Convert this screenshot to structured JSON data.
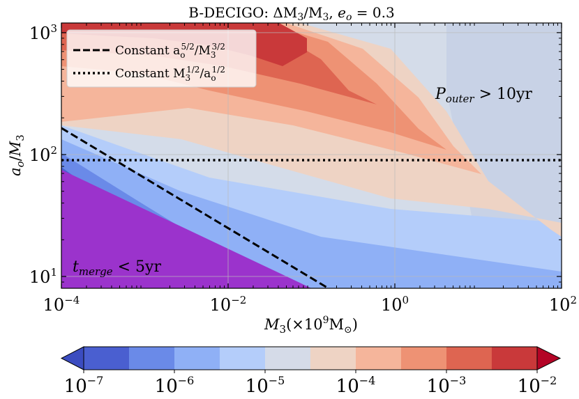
{
  "chart_data": {
    "type": "contour",
    "title": "B-DECIGO: ΔM3/M3, e_o = 0.3",
    "xlabel": "M3(×10^9 M⊙)",
    "ylabel": "a_o/M3",
    "x_scale": "log",
    "y_scale": "log",
    "xlim": [
      0.0001,
      100
    ],
    "ylim": [
      8,
      1200
    ],
    "x_ticks": [
      {
        "value": 0.0001,
        "base": "10",
        "exp": "−4"
      },
      {
        "value": 0.01,
        "base": "10",
        "exp": "−2"
      },
      {
        "value": 1,
        "base": "10",
        "exp": "0"
      },
      {
        "value": 100,
        "base": "10",
        "exp": "2"
      }
    ],
    "y_ticks": [
      {
        "value": 10,
        "base": "10",
        "exp": "1"
      },
      {
        "value": 100,
        "base": "10",
        "exp": "2"
      },
      {
        "value": 1000,
        "base": "10",
        "exp": "3"
      }
    ],
    "grid": true,
    "legend": {
      "placement": "top-left",
      "entries": [
        {
          "style": "dashed",
          "label_text": "Constant a_o^{5/2}/M3^{3/2}",
          "main": "Constant a",
          "sub": "o",
          "sup": "5/2",
          "mid": "/M",
          "sub2": "3",
          "sup2": "3/2"
        },
        {
          "style": "dotted",
          "label_text": "Constant M3^{1/2}/a_o^{1/2}",
          "main": "Constant M",
          "sub": "3",
          "sup": "1/2",
          "mid": "/a",
          "sub2": "o",
          "sup2": "1/2"
        }
      ]
    },
    "annotations": [
      {
        "text": "t_merge < 5yr",
        "var": "t",
        "sub": "merge",
        "rest": " < 5yr"
      },
      {
        "text": "P_outer > 10yr",
        "var": "P",
        "sub": "outer",
        "rest": " > 10yr"
      }
    ],
    "lines": [
      {
        "name": "constant a_o^{5/2}/M3^{3/2}",
        "style": "dashed",
        "x": [
          0.0001,
          0.15
        ],
        "y": [
          165,
          8.2
        ]
      },
      {
        "name": "constant M3^{1/2}/a_o^{1/2}",
        "style": "dotted",
        "x": [
          0.0001,
          100
        ],
        "y": [
          90,
          90
        ]
      }
    ],
    "regions": {
      "merge": {
        "x": [
          0.0001,
          0.0001,
          0.1
        ],
        "y": [
          75,
          8,
          8
        ],
        "color": "#9b33cc"
      }
    },
    "colorbar": {
      "scale": "log",
      "range": [
        1e-07,
        0.01
      ],
      "extend": "both",
      "levels": [
        1e-07,
        3.16e-07,
        1e-06,
        3.16e-06,
        1e-05,
        3.16e-05,
        0.0001,
        0.000316,
        0.001,
        0.00316,
        0.01
      ],
      "colors": [
        "#4a5fd0",
        "#6a8ae8",
        "#8fb0f6",
        "#b4cdfa",
        "#d5dbe8",
        "#eed3c4",
        "#f5b59b",
        "#ee9274",
        "#de6551",
        "#c9393a"
      ],
      "under_color": "#3b4cc0",
      "over_color": "#b40426",
      "ticks": [
        {
          "value": 1e-07,
          "base": "10",
          "exp": "−7"
        },
        {
          "value": 1e-06,
          "base": "10",
          "exp": "−6"
        },
        {
          "value": 1e-05,
          "base": "10",
          "exp": "−5"
        },
        {
          "value": 0.0001,
          "base": "10",
          "exp": "−4"
        },
        {
          "value": 0.001,
          "base": "10",
          "exp": "−3"
        },
        {
          "value": 0.01,
          "base": "10",
          "exp": "−2"
        }
      ]
    }
  }
}
